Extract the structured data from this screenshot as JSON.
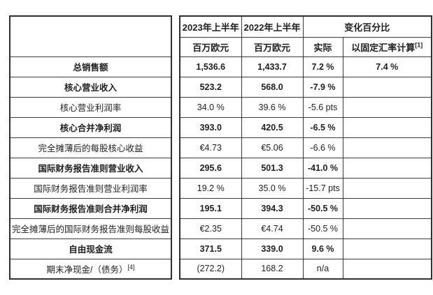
{
  "table": {
    "title": "financial-results-table",
    "header": {
      "col_2023": "2023年上半年",
      "col_2022": "2022年上半年",
      "col_change_group": "变化百分比",
      "unit_2023": "百万欧元",
      "unit_2022": "百万欧元",
      "col_actual": "实际",
      "col_cer": "以固定汇率计算",
      "col_cer_footnote": "[1]"
    },
    "rows": [
      {
        "label": "总销售额",
        "bold": true,
        "v2023": "1,536.6",
        "v2022": "1,433.7",
        "actual": "7.2 %",
        "cer": "7.4 %"
      },
      {
        "label": "核心营业收入",
        "bold": true,
        "v2023": "523.2",
        "v2022": "568.0",
        "actual": "-7.9 %",
        "cer": ""
      },
      {
        "label": "核心营业利润率",
        "bold": false,
        "v2023": "34.0 %",
        "v2022": "39.6 %",
        "actual": "-5.6 pts",
        "cer": ""
      },
      {
        "label": "核心合并净利润",
        "bold": true,
        "v2023": "393.0",
        "v2022": "420.5",
        "actual": "-6.5 %",
        "cer": ""
      },
      {
        "label": "完全摊薄后的每股核心收益",
        "bold": false,
        "v2023": "€4.73",
        "v2022": "€5.06",
        "actual": "-6.6 %",
        "cer": ""
      },
      {
        "label": "国际财务报告准则营业收入",
        "bold": true,
        "v2023": "295.6",
        "v2022": "501.3",
        "actual": "-41.0 %",
        "cer": ""
      },
      {
        "label": "国际财务报告准则营业利润率",
        "bold": false,
        "v2023": "19.2 %",
        "v2022": "35.0 %",
        "actual": "-15.7 pts",
        "cer": ""
      },
      {
        "label": "国际财务报告准则合并净利润",
        "bold": true,
        "v2023": "195.1",
        "v2022": "394.3",
        "actual": "-50.5 %",
        "cer": ""
      },
      {
        "label": "完全摊薄后的国际财务报告准则每股收益",
        "bold": false,
        "v2023": "€2.35",
        "v2022": "€4.74",
        "actual": "-50.5 %",
        "cer": ""
      },
      {
        "label": "自由现金流",
        "bold": true,
        "v2023": "371.5",
        "v2022": "339.0",
        "actual": "9.6 %",
        "cer": ""
      },
      {
        "label": "期末净现金/（债务）",
        "label_footnote": "[4]",
        "bold": false,
        "v2023": "(272.2)",
        "v2022": "168.2",
        "actual": "n/a",
        "cer": ""
      }
    ],
    "colors": {
      "border_outer": "#2f2f2f",
      "border_inner": "#3a3a3a",
      "text": "#1e1e1e",
      "background": "#ffffff"
    }
  }
}
